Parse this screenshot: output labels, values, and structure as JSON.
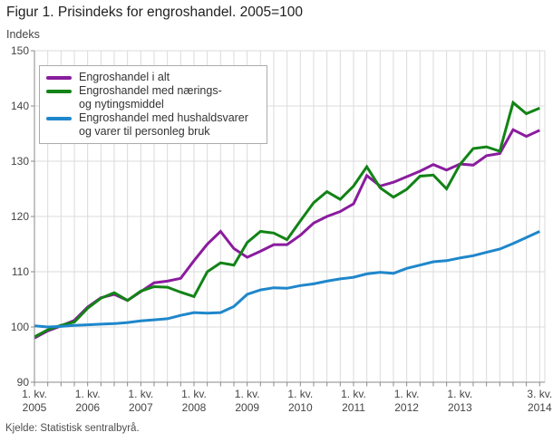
{
  "header": {
    "title": "Figur 1. Prisindeks for engroshandel. 2005=100"
  },
  "chart": {
    "y_axis_label": "Indeks",
    "legend": {
      "items": [
        {
          "label_line1": "Engroshandel i alt",
          "label_line2": "",
          "color": "#8A1C9E"
        },
        {
          "label_line1": "Engroshandel med nærings-",
          "label_line2": "og nytingsmiddel",
          "color": "#128316"
        },
        {
          "label_line1": "Engroshandel med hushaldsvarer",
          "label_line2": "og varer til personleg bruk",
          "color": "#1F87CB"
        }
      ]
    }
  },
  "footer": {
    "source": "Kjelde: Statistisk sentralbyrå."
  },
  "colors": {
    "purple": "#8A1C9E",
    "green": "#128316",
    "blue": "#1F87CB",
    "grid": "#DBDBDB",
    "axis": "#8A8A8A",
    "tick_text": "#454545",
    "legend_border": "#ACACAC",
    "background": "#FFFFFF"
  },
  "chart_data": {
    "type": "line",
    "title": "Figur 1. Prisindeks for engroshandel. 2005=100",
    "ylabel": "Indeks",
    "ylim": [
      90,
      150
    ],
    "y_ticks": [
      90,
      100,
      110,
      120,
      130,
      140,
      150
    ],
    "grid": true,
    "legend_position": "top-left",
    "x_quarters": [
      "2005K1",
      "2005K2",
      "2005K3",
      "2005K4",
      "2006K1",
      "2006K2",
      "2006K3",
      "2006K4",
      "2007K1",
      "2007K2",
      "2007K3",
      "2007K4",
      "2008K1",
      "2008K2",
      "2008K3",
      "2008K4",
      "2009K1",
      "2009K2",
      "2009K3",
      "2009K4",
      "2010K1",
      "2010K2",
      "2010K3",
      "2010K4",
      "2011K1",
      "2011K2",
      "2011K3",
      "2011K4",
      "2012K1",
      "2012K2",
      "2012K3",
      "2012K4",
      "2013K1",
      "2013K2",
      "2013K3",
      "2013K4",
      "2014K1",
      "2014K2",
      "2014K3"
    ],
    "x_tick_labels": [
      {
        "index": 0,
        "line1": "1. kv.",
        "line2": "2005"
      },
      {
        "index": 4,
        "line1": "1. kv.",
        "line2": "2006"
      },
      {
        "index": 8,
        "line1": "1. kv.",
        "line2": "2007"
      },
      {
        "index": 12,
        "line1": "1. kv.",
        "line2": "2008"
      },
      {
        "index": 16,
        "line1": "1. kv.",
        "line2": "2009"
      },
      {
        "index": 20,
        "line1": "1. kv.",
        "line2": "2010"
      },
      {
        "index": 24,
        "line1": "1. kv.",
        "line2": "2011"
      },
      {
        "index": 28,
        "line1": "1. kv.",
        "line2": "2012"
      },
      {
        "index": 32,
        "line1": "1. kv.",
        "line2": "2013"
      },
      {
        "index": 38,
        "line1": "3. kv.",
        "line2": "2014"
      }
    ],
    "series": [
      {
        "name": "Engroshandel i alt",
        "color": "#8A1C9E",
        "values": [
          98.0,
          99.3,
          100.2,
          101.2,
          103.6,
          105.3,
          105.9,
          104.8,
          106.4,
          108.0,
          108.3,
          108.8,
          112.0,
          115.0,
          117.3,
          114.2,
          112.6,
          113.7,
          114.9,
          114.9,
          116.6,
          118.8,
          120.0,
          120.9,
          122.3,
          127.4,
          125.5,
          126.2,
          127.2,
          128.2,
          129.4,
          128.4,
          129.5,
          129.3,
          131.0,
          131.4,
          135.7,
          134.5,
          135.6
        ]
      },
      {
        "name": "Engroshandel med nærings- og nytingsmiddel",
        "color": "#128316",
        "values": [
          98.2,
          99.5,
          100.3,
          100.9,
          103.4,
          105.2,
          106.2,
          104.8,
          106.5,
          107.3,
          107.2,
          106.3,
          105.5,
          110.0,
          111.6,
          111.2,
          115.3,
          117.3,
          117.0,
          115.8,
          119.2,
          122.5,
          124.5,
          123.1,
          125.5,
          129.0,
          125.2,
          123.5,
          124.9,
          127.3,
          127.5,
          125.0,
          129.4,
          132.3,
          132.6,
          131.8,
          140.6,
          138.6,
          139.6
        ]
      },
      {
        "name": "Engroshandel med hushaldsvarer og varer til personleg bruk",
        "color": "#1F87CB",
        "values": [
          100.2,
          100.0,
          100.1,
          100.3,
          100.4,
          100.5,
          100.6,
          100.8,
          101.1,
          101.3,
          101.5,
          102.1,
          102.6,
          102.5,
          102.6,
          103.7,
          105.9,
          106.7,
          107.1,
          107.0,
          107.5,
          107.8,
          108.3,
          108.7,
          109.0,
          109.6,
          109.9,
          109.7,
          110.6,
          111.2,
          111.8,
          112.0,
          112.5,
          112.9,
          113.5,
          114.1,
          115.1,
          116.2,
          117.3
        ]
      }
    ]
  }
}
